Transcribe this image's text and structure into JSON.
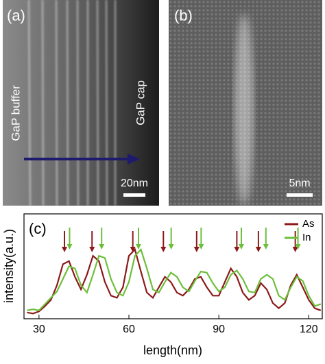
{
  "panels": {
    "a": {
      "label": "(a)",
      "left_text": "GaP buffer",
      "right_text": "GaP cap",
      "scale_bar": "20nm"
    },
    "b": {
      "label": "(b)",
      "scale_bar": "5nm"
    }
  },
  "chart_data": {
    "type": "line",
    "label": "(c)",
    "xlabel": "length(nm)",
    "ylabel": "intensity(a.u.)",
    "xlim": [
      25,
      124.5
    ],
    "xticks": [
      30,
      60,
      90,
      120
    ],
    "ylim": [
      0,
      1
    ],
    "legend": "upper right",
    "x": [
      26,
      28,
      30,
      32,
      34,
      36,
      38,
      40,
      42,
      44,
      46,
      48,
      50,
      52,
      54,
      56,
      58,
      60,
      62,
      64,
      66,
      68,
      70,
      72,
      74,
      76,
      78,
      80,
      82,
      84,
      86,
      88,
      90,
      92,
      94,
      96,
      98,
      100,
      102,
      104,
      106,
      108,
      110,
      112,
      114,
      116,
      118,
      120,
      122,
      124
    ],
    "series": [
      {
        "name": "As",
        "color": "#8b1a1a",
        "arrows_x": [
          38.5,
          47.7,
          61.3,
          71.5,
          82.6,
          96,
          103.2,
          115.5
        ],
        "values": [
          0.06,
          0.05,
          0.07,
          0.12,
          0.18,
          0.32,
          0.52,
          0.55,
          0.4,
          0.28,
          0.42,
          0.6,
          0.55,
          0.35,
          0.22,
          0.2,
          0.3,
          0.6,
          0.66,
          0.45,
          0.25,
          0.2,
          0.3,
          0.4,
          0.35,
          0.25,
          0.22,
          0.28,
          0.38,
          0.4,
          0.3,
          0.22,
          0.22,
          0.35,
          0.48,
          0.4,
          0.25,
          0.18,
          0.22,
          0.34,
          0.28,
          0.15,
          0.1,
          0.15,
          0.32,
          0.42,
          0.3,
          0.18,
          0.1,
          0.08
        ]
      },
      {
        "name": "In",
        "color": "#6cbf3a",
        "arrows_x": [
          40.2,
          50.9,
          63.2,
          74.1,
          84.1,
          97.5,
          105.7,
          116.4
        ],
        "values": [
          0.08,
          0.09,
          0.08,
          0.14,
          0.2,
          0.26,
          0.38,
          0.5,
          0.48,
          0.32,
          0.25,
          0.42,
          0.6,
          0.58,
          0.38,
          0.25,
          0.22,
          0.35,
          0.6,
          0.66,
          0.48,
          0.28,
          0.25,
          0.35,
          0.44,
          0.4,
          0.3,
          0.26,
          0.36,
          0.45,
          0.44,
          0.34,
          0.26,
          0.3,
          0.42,
          0.46,
          0.38,
          0.26,
          0.25,
          0.38,
          0.42,
          0.38,
          0.22,
          0.18,
          0.3,
          0.4,
          0.36,
          0.22,
          0.12,
          0.14
        ]
      }
    ]
  }
}
